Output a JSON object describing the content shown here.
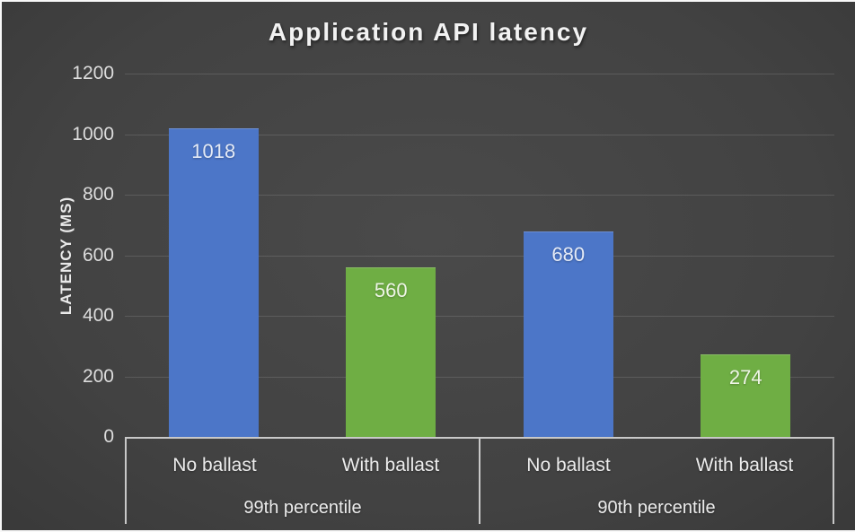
{
  "chart_data": {
    "type": "bar",
    "title": "Application API latency",
    "xlabel": "",
    "ylabel": "LATENCY (MS)",
    "ylim": [
      0,
      1200
    ],
    "yticks": [
      0,
      200,
      400,
      600,
      800,
      1000,
      1200
    ],
    "grid": true,
    "legend": "none",
    "data_labels": "inside-end",
    "groups": [
      {
        "label": "99th percentile",
        "bars": [
          {
            "category": "No ballast",
            "value": 1018,
            "color": "#4c76c8",
            "label_color": "#e4eaf6"
          },
          {
            "category": "With ballast",
            "value": 560,
            "color": "#6fae44",
            "label_color": "#eef5e6"
          }
        ]
      },
      {
        "label": "90th percentile",
        "bars": [
          {
            "category": "No ballast",
            "value": 680,
            "color": "#4c76c8",
            "label_color": "#e4eaf6"
          },
          {
            "category": "With ballast",
            "value": 274,
            "color": "#6fae44",
            "label_color": "#eef5e6"
          }
        ]
      }
    ],
    "colors": {
      "bar_no_ballast": "#4c76c8",
      "bar_with_ballast": "#6fae44",
      "background_center": "#4a4a4a",
      "background_edge": "#1d1d1d",
      "gridline": "rgba(255,255,255,0.13)",
      "axis_line": "#e1e1e1",
      "text": "#ececec",
      "title_text": "#f2f2f2"
    }
  }
}
